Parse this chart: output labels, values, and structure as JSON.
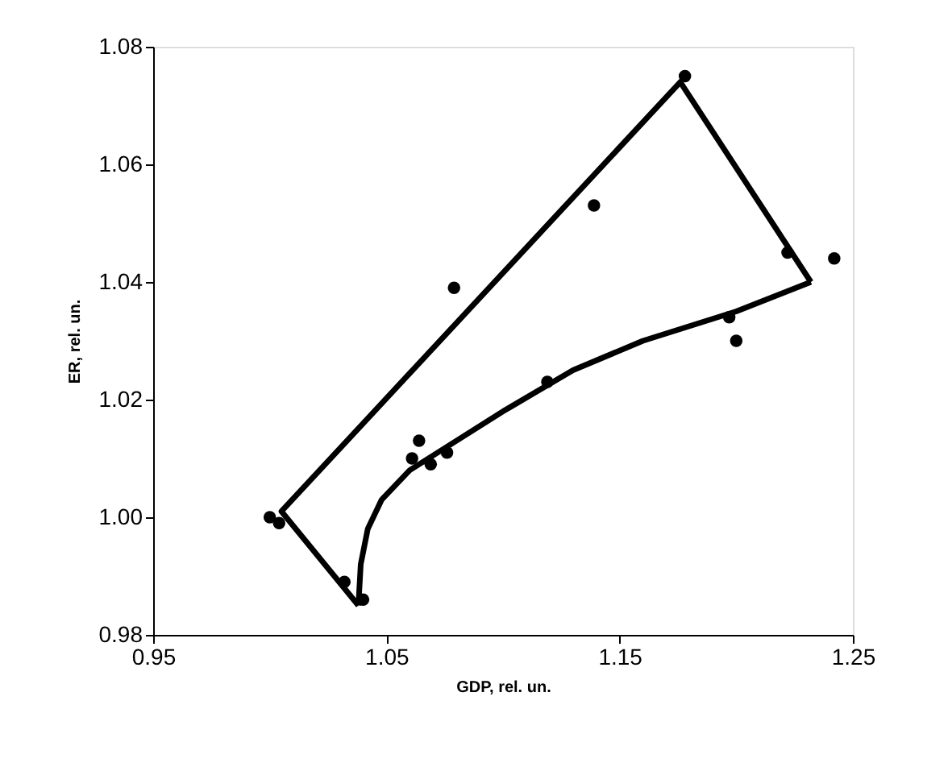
{
  "chart_data": {
    "type": "scatter",
    "xlabel": "GDP, rel. un.",
    "ylabel": "ER, rel. un.",
    "xlim": [
      0.95,
      1.25
    ],
    "ylim": [
      0.98,
      1.08
    ],
    "xticks": [
      0.95,
      1.05,
      1.15,
      1.25
    ],
    "yticks": [
      0.98,
      {
        "value": 1.0,
        "label": "1.00"
      },
      1.02,
      1.04,
      1.06,
      1.08
    ],
    "grid": false,
    "legend": false,
    "series": [
      {
        "color": "#000000",
        "marker": "circle",
        "x": [
          1.0,
          1.004,
          1.032,
          1.04,
          1.061,
          1.064,
          1.069,
          1.076,
          1.079,
          1.119,
          1.139,
          1.178,
          1.197,
          1.2,
          1.222,
          1.242
        ],
        "values": [
          1.0,
          0.999,
          0.989,
          0.986,
          1.01,
          1.013,
          1.009,
          1.011,
          1.039,
          1.023,
          1.053,
          1.075,
          1.034,
          1.03,
          1.045,
          1.044
        ]
      },
      {
        "type": "line",
        "color": "#000000",
        "line_style": "solid",
        "marker": "none",
        "x": [
          1.038,
          1.005,
          1.176,
          1.232
        ],
        "values": [
          0.985,
          1.001,
          1.074,
          1.04
        ]
      },
      {
        "type": "line",
        "color": "#000000",
        "line_style": "solid",
        "marker": "none",
        "x": [
          1.038,
          1.039,
          1.042,
          1.048,
          1.06,
          1.08,
          1.1,
          1.13,
          1.16,
          1.2,
          1.232
        ],
        "values": [
          0.985,
          0.992,
          0.998,
          1.003,
          1.008,
          1.013,
          1.018,
          1.025,
          1.03,
          1.035,
          1.04
        ]
      }
    ]
  }
}
